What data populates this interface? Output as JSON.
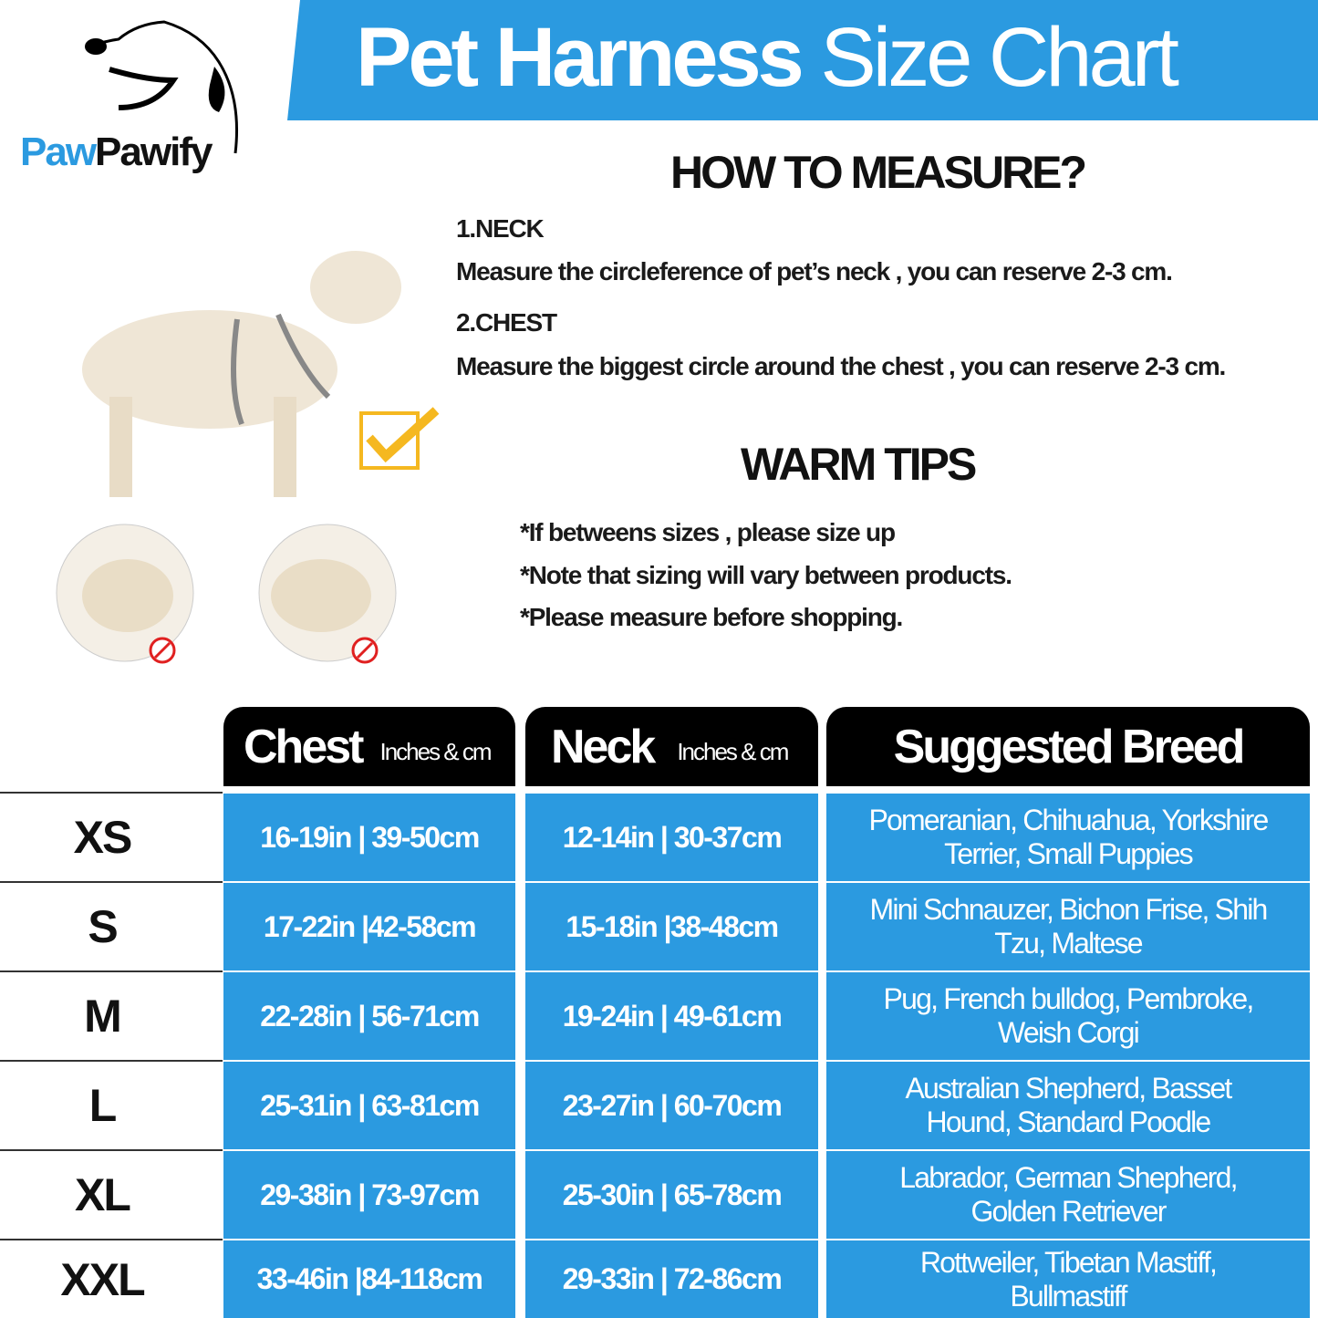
{
  "brand": {
    "part1": "Paw",
    "part2": "Pawify"
  },
  "title": {
    "bold": "Pet Harness",
    "light": "Size Chart"
  },
  "measure": {
    "heading": "HOW TO MEASURE?",
    "neck_label": "1.NECK",
    "neck_text": "Measure the circleference of pet’s neck , you can reserve 2-3 cm.",
    "chest_label": "2.CHEST",
    "chest_text": "Measure the biggest circle around the chest , you can reserve 2-3 cm."
  },
  "tips": {
    "heading": "WARM TIPS",
    "items": [
      "*If betweens sizes , please size up",
      "*Note that sizing will vary between products.",
      "*Please measure before shopping."
    ]
  },
  "colors": {
    "accent": "#2b9ae0",
    "header": "#000000",
    "check": "#f5b820",
    "prohibit": "#e02020"
  },
  "table": {
    "headers": {
      "chest": "Chest",
      "chest_unit": "Inches & cm",
      "neck": "Neck",
      "neck_unit": "Inches & cm",
      "breed": "Suggested Breed"
    },
    "rows": [
      {
        "size": "XS",
        "chest": "16-19in | 39-50cm",
        "neck": "12-14in | 30-37cm",
        "breed": "Pomeranian, Chihuahua, Yorkshire Terrier, Small Puppies"
      },
      {
        "size": "S",
        "chest": "17-22in |42-58cm",
        "neck": "15-18in |38-48cm",
        "breed": "Mini Schnauzer, Bichon Frise, Shih Tzu, Maltese"
      },
      {
        "size": "M",
        "chest": "22-28in | 56-71cm",
        "neck": "19-24in | 49-61cm",
        "breed": "Pug, French bulldog, Pembroke, Weish Corgi"
      },
      {
        "size": "L",
        "chest": "25-31in | 63-81cm",
        "neck": "23-27in | 60-70cm",
        "breed": "Australian Shepherd, Basset Hound, Standard Poodle"
      },
      {
        "size": "XL",
        "chest": "29-38in | 73-97cm",
        "neck": "25-30in | 65-78cm",
        "breed": "Labrador, German Shepherd, Golden Retriever"
      },
      {
        "size": "XXL",
        "chest": "33-46in |84-118cm",
        "neck": "29-33in | 72-86cm",
        "breed": "Rottweiler, Tibetan Mastiff, Bullmastiff"
      }
    ]
  }
}
